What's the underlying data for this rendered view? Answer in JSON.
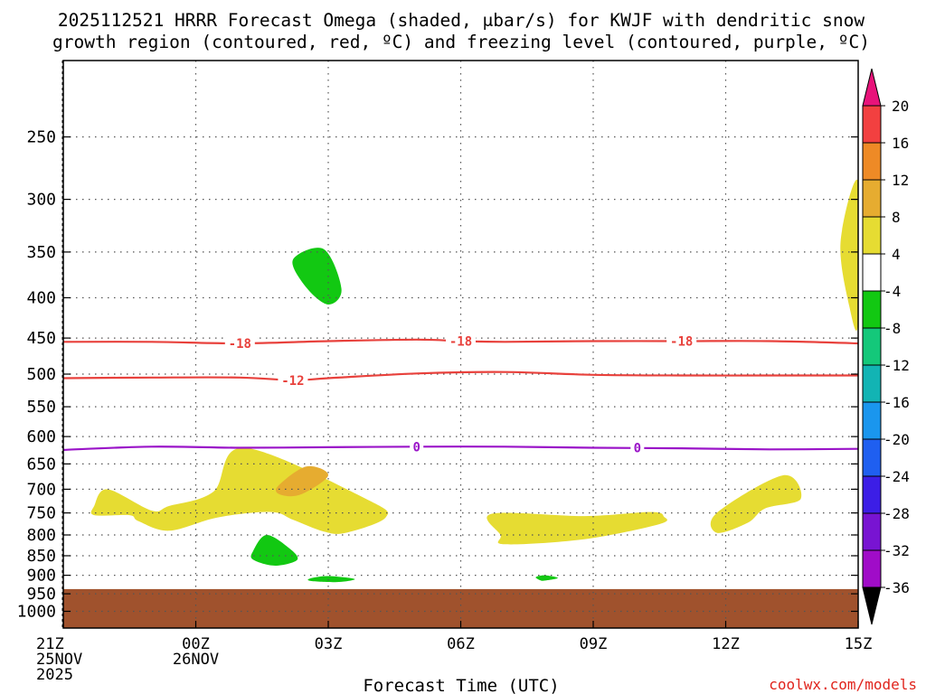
{
  "chart_data": {
    "type": "heatmap",
    "title_line1": "2025112521 HRRR Forecast Omega (shaded, μbar/s) for KWJF with dendritic snow",
    "title_line2": "growth region (contoured, red, ºC) and freezing level (contoured, purple, ºC)",
    "xlabel": "Forecast Time (UTC)",
    "credit": "coolwx.com/models",
    "x_range_hours": [
      0,
      18
    ],
    "y_range_hpa": [
      200,
      1050
    ],
    "y_scale": "log-pressure",
    "grid": true,
    "x_ticks": [
      {
        "hour": 0,
        "lines": [
          "21Z",
          "25NOV",
          "2025"
        ]
      },
      {
        "hour": 3,
        "lines": [
          "00Z",
          "26NOV"
        ]
      },
      {
        "hour": 6,
        "lines": [
          "03Z"
        ]
      },
      {
        "hour": 9,
        "lines": [
          "06Z"
        ]
      },
      {
        "hour": 12,
        "lines": [
          "09Z"
        ]
      },
      {
        "hour": 15,
        "lines": [
          "12Z"
        ]
      },
      {
        "hour": 18,
        "lines": [
          "15Z"
        ]
      }
    ],
    "y_ticks": [
      250,
      300,
      350,
      400,
      450,
      500,
      550,
      600,
      650,
      700,
      750,
      800,
      850,
      900,
      950,
      1000
    ],
    "colorbar": {
      "labels": [
        "20",
        "16",
        "12",
        "8",
        "4",
        "-4",
        "-8",
        "-12",
        "-16",
        "-20",
        "-24",
        "-28",
        "-32",
        "-36"
      ],
      "colors": [
        "#e8137a",
        "#f24040",
        "#ee8a26",
        "#e6ac30",
        "#e6dc32",
        "#ffffff",
        "#12c812",
        "#14c87a",
        "#12b4b4",
        "#1a96ee",
        "#1f5ff0",
        "#3c1ee6",
        "#7814d2",
        "#a00cc8",
        "#aaaaaa",
        "#000000"
      ]
    },
    "terrain": {
      "color": "#a0522d",
      "top_hpa": 937
    },
    "omega_regions": [
      {
        "value": "4 to 8",
        "color": "#e6dc32",
        "points": [
          [
            0.7,
            735
          ],
          [
            1.0,
            700
          ],
          [
            2.0,
            745
          ],
          [
            2.4,
            735
          ],
          [
            3.4,
            705
          ],
          [
            4.1,
            620
          ],
          [
            6.9,
            722
          ],
          [
            7.3,
            760
          ],
          [
            6.4,
            795
          ],
          [
            5.9,
            792
          ],
          [
            5.2,
            765
          ],
          [
            4.7,
            748
          ],
          [
            3.5,
            760
          ],
          [
            2.4,
            790
          ],
          [
            1.7,
            768
          ],
          [
            1.5,
            755
          ],
          [
            0.7,
            755
          ]
        ]
      },
      {
        "value": "8 to 12",
        "color": "#e6ac30",
        "points": [
          [
            4.85,
            695
          ],
          [
            5.5,
            655
          ],
          [
            6.0,
            672
          ],
          [
            5.4,
            710
          ],
          [
            4.95,
            712
          ]
        ]
      },
      {
        "value": "4 to 8",
        "color": "#e6dc32",
        "points": [
          [
            9.7,
            752
          ],
          [
            11.8,
            757
          ],
          [
            13.3,
            748
          ],
          [
            13.6,
            758
          ],
          [
            13.5,
            775
          ],
          [
            11.8,
            810
          ],
          [
            10.0,
            822
          ],
          [
            9.9,
            800
          ]
        ]
      },
      {
        "value": "4 to 8",
        "color": "#e6dc32",
        "points": [
          [
            14.8,
            750
          ],
          [
            16.3,
            672
          ],
          [
            16.7,
            720
          ],
          [
            15.9,
            740
          ],
          [
            15.5,
            772
          ],
          [
            14.8,
            795
          ]
        ]
      },
      {
        "value": "4 to 8",
        "color": "#e6dc32",
        "points": [
          [
            18.0,
            285
          ],
          [
            17.6,
            340
          ],
          [
            17.8,
            410
          ],
          [
            18.0,
            430
          ]
        ]
      },
      {
        "value": "-4 to -8",
        "color": "#12c812",
        "points": [
          [
            5.2,
            358
          ],
          [
            5.9,
            347
          ],
          [
            6.3,
            390
          ],
          [
            6.0,
            408
          ],
          [
            5.5,
            388
          ]
        ]
      },
      {
        "value": "-4 to -8",
        "color": "#12c812",
        "points": [
          [
            4.3,
            838
          ],
          [
            4.6,
            800
          ],
          [
            5.1,
            830
          ],
          [
            5.3,
            860
          ],
          [
            4.8,
            875
          ],
          [
            4.3,
            860
          ]
        ]
      },
      {
        "value": "-4 to -8",
        "color": "#12c812",
        "points": [
          [
            5.6,
            908
          ],
          [
            6.0,
            902
          ],
          [
            6.6,
            910
          ],
          [
            6.2,
            918
          ],
          [
            5.6,
            915
          ]
        ]
      },
      {
        "value": "-4 to -8",
        "color": "#12c812",
        "points": [
          [
            10.7,
            905
          ],
          [
            10.9,
            900
          ],
          [
            11.2,
            907
          ],
          [
            10.9,
            914
          ],
          [
            10.8,
            913
          ]
        ]
      }
    ],
    "contours": [
      {
        "label": "-18",
        "color": "#e8413c",
        "points": [
          [
            0,
            455
          ],
          [
            2,
            455
          ],
          [
            4,
            457
          ],
          [
            6,
            454
          ],
          [
            8,
            452
          ],
          [
            9,
            454
          ],
          [
            10,
            455
          ],
          [
            12,
            454
          ],
          [
            14,
            454
          ],
          [
            16,
            454
          ],
          [
            18,
            457
          ]
        ],
        "label_at": [
          [
            4,
            457
          ],
          [
            9,
            454
          ],
          [
            14,
            454
          ]
        ]
      },
      {
        "label": "-12",
        "color": "#e8413c",
        "points": [
          [
            0,
            506
          ],
          [
            2,
            505
          ],
          [
            4,
            505
          ],
          [
            5.2,
            509
          ],
          [
            6,
            506
          ],
          [
            8,
            499
          ],
          [
            10,
            497
          ],
          [
            12,
            501
          ],
          [
            14,
            502
          ],
          [
            16,
            502
          ],
          [
            18,
            502
          ]
        ],
        "label_at": [
          [
            5.2,
            509
          ]
        ]
      },
      {
        "label": "0",
        "color": "#9a14c8",
        "points": [
          [
            0,
            624
          ],
          [
            2,
            618
          ],
          [
            4,
            620
          ],
          [
            6,
            619
          ],
          [
            8,
            618
          ],
          [
            10,
            618
          ],
          [
            12,
            620
          ],
          [
            14,
            621
          ],
          [
            16,
            623
          ],
          [
            18,
            622
          ]
        ],
        "label_at": [
          [
            8,
            618
          ],
          [
            13,
            620
          ]
        ]
      }
    ]
  }
}
